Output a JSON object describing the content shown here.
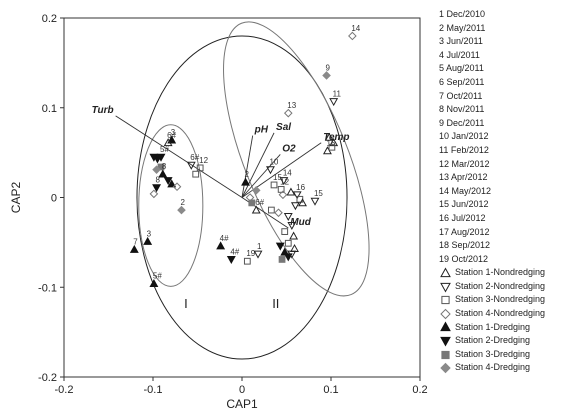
{
  "chart_data": {
    "type": "scatter",
    "xlabel": "CAP1",
    "ylabel": "CAP2",
    "xlim": [
      -0.2,
      0.2
    ],
    "ylim": [
      -0.2,
      0.2
    ],
    "xticks": [
      "-0.2",
      "-0.1",
      "0",
      "0.1",
      "0.2"
    ],
    "yticks": [
      "-0.2",
      "-0.1",
      "0",
      "0.1",
      "0.2"
    ],
    "legend_position": "right",
    "time_legend": [
      "1 Dec/2010",
      "2 May/2011",
      "3 Jun/2011",
      "4 Jul/2011",
      "5 Aug/2011",
      "6 Sep/2011",
      "7 Oct/2011",
      "8 Nov/2011",
      "9 Dec/2011",
      "10 Jan/2012",
      "11 Feb/2012",
      "12 Mar/2012",
      "13 Apr/2012",
      "14 May/2012",
      "15 Jun/2012",
      "16 Jul/2012",
      "17 Aug/2012",
      "18 Sep/2012",
      "19 Oct/2012"
    ],
    "station_legend": [
      {
        "label": "Station 1-Nondredging",
        "marker": "triangle-up-open",
        "color": "#222222"
      },
      {
        "label": "Station 2-Nondredging",
        "marker": "triangle-down-open",
        "color": "#222222"
      },
      {
        "label": "Station 3-Nondredging",
        "marker": "square-open",
        "color": "#555555"
      },
      {
        "label": "Station 4-Nondredging",
        "marker": "diamond-open",
        "color": "#777777"
      },
      {
        "label": "Station 1-Dredging",
        "marker": "triangle-up-filled",
        "color": "#111111"
      },
      {
        "label": "Station 2-Dredging",
        "marker": "triangle-down-filled",
        "color": "#111111"
      },
      {
        "label": "Station 3-Dredging",
        "marker": "square-filled",
        "color": "#777777"
      },
      {
        "label": "Station 4-Dredging",
        "marker": "diamond-filled",
        "color": "#8a8a8a"
      }
    ],
    "vectors": [
      {
        "label": "Turb",
        "x": -0.142,
        "y": 0.091
      },
      {
        "label": "pH",
        "x": 0.012,
        "y": 0.069
      },
      {
        "label": "Sal",
        "x": 0.036,
        "y": 0.072
      },
      {
        "label": "O2",
        "x": 0.043,
        "y": 0.048
      },
      {
        "label": "Temp",
        "x": 0.089,
        "y": 0.061
      },
      {
        "label": "Mud",
        "x": 0.052,
        "y": -0.034
      }
    ],
    "group_labels": [
      {
        "label": "I",
        "x": -0.063,
        "y": -0.123
      },
      {
        "label": "II",
        "x": 0.038,
        "y": -0.123
      }
    ],
    "ellipses": [
      {
        "cx": 0.0,
        "cy": 0.0,
        "rx": 0.118,
        "ry": 0.18,
        "angle": 0
      },
      {
        "cx": -0.08,
        "cy": -0.009,
        "rx": 0.036,
        "ry": 0.09,
        "angle": 0
      },
      {
        "cx": 0.061,
        "cy": 0.043,
        "rx": 0.058,
        "ry": 0.163,
        "angle": -22
      }
    ],
    "points": [
      {
        "label": "14",
        "x": 0.124,
        "y": 0.18,
        "marker": "diamond-open"
      },
      {
        "label": "9",
        "x": 0.095,
        "y": 0.136,
        "marker": "diamond-filled"
      },
      {
        "label": "11",
        "x": 0.103,
        "y": 0.107,
        "marker": "triangle-down-open"
      },
      {
        "label": "13",
        "x": 0.052,
        "y": 0.094,
        "marker": "diamond-open"
      },
      {
        "label": "",
        "x": 0.098,
        "y": 0.067,
        "marker": "triangle-up-open"
      },
      {
        "label": "",
        "x": 0.103,
        "y": 0.061,
        "marker": "triangle-up-open"
      },
      {
        "label": "16",
        "x": 0.096,
        "y": 0.052,
        "marker": "triangle-up-open"
      },
      {
        "label": "",
        "x": 0.101,
        "y": 0.056,
        "marker": "square-open"
      },
      {
        "label": "15",
        "x": 0.082,
        "y": -0.004,
        "marker": "triangle-down-open"
      },
      {
        "label": "10",
        "x": 0.032,
        "y": 0.031,
        "marker": "triangle-down-open"
      },
      {
        "label": "14",
        "x": 0.047,
        "y": 0.019,
        "marker": "triangle-down-open"
      },
      {
        "label": "15",
        "x": 0.036,
        "y": 0.014,
        "marker": "square-open"
      },
      {
        "label": "12",
        "x": 0.044,
        "y": 0.009,
        "marker": "square-open"
      },
      {
        "label": "",
        "x": 0.046,
        "y": 0.003,
        "marker": "diamond-open"
      },
      {
        "label": "",
        "x": 0.055,
        "y": 0.006,
        "marker": "triangle-up-open"
      },
      {
        "label": "16",
        "x": 0.062,
        "y": 0.003,
        "marker": "triangle-down-open"
      },
      {
        "label": "",
        "x": 0.065,
        "y": -0.002,
        "marker": "square-open"
      },
      {
        "label": "",
        "x": 0.06,
        "y": -0.009,
        "marker": "triangle-down-open"
      },
      {
        "label": "",
        "x": 0.068,
        "y": -0.006,
        "marker": "triangle-up-open"
      },
      {
        "label": "6#",
        "x": 0.016,
        "y": -0.014,
        "marker": "triangle-up-open"
      },
      {
        "label": "",
        "x": 0.033,
        "y": -0.014,
        "marker": "square-open"
      },
      {
        "label": "",
        "x": 0.041,
        "y": -0.017,
        "marker": "diamond-open"
      },
      {
        "label": "",
        "x": 0.052,
        "y": -0.021,
        "marker": "triangle-down-open"
      },
      {
        "label": "",
        "x": 0.056,
        "y": -0.031,
        "marker": "triangle-down-open"
      },
      {
        "label": "",
        "x": 0.048,
        "y": -0.038,
        "marker": "square-open"
      },
      {
        "label": "",
        "x": 0.058,
        "y": -0.043,
        "marker": "triangle-up-open"
      },
      {
        "label": "",
        "x": 0.052,
        "y": -0.051,
        "marker": "square-open"
      },
      {
        "label": "",
        "x": 0.043,
        "y": -0.054,
        "marker": "triangle-down-filled"
      },
      {
        "label": "",
        "x": 0.048,
        "y": -0.061,
        "marker": "triangle-up-filled"
      },
      {
        "label": "",
        "x": 0.052,
        "y": -0.066,
        "marker": "triangle-down-filled"
      },
      {
        "label": "",
        "x": 0.045,
        "y": -0.069,
        "marker": "square-filled"
      },
      {
        "label": "",
        "x": 0.056,
        "y": -0.063,
        "marker": "triangle-down-open"
      },
      {
        "label": "",
        "x": 0.059,
        "y": -0.057,
        "marker": "triangle-up-open"
      },
      {
        "label": "19",
        "x": 0.006,
        "y": -0.071,
        "marker": "square-open"
      },
      {
        "label": "1",
        "x": 0.018,
        "y": -0.063,
        "marker": "triangle-down-open"
      },
      {
        "label": "2",
        "x": 0.004,
        "y": 0.017,
        "marker": "triangle-up-filled"
      },
      {
        "label": "",
        "x": 0.016,
        "y": 0.008,
        "marker": "diamond-filled"
      },
      {
        "label": "",
        "x": 0.009,
        "y": 0.0,
        "marker": "diamond-open"
      },
      {
        "label": "",
        "x": 0.011,
        "y": -0.006,
        "marker": "square-filled"
      },
      {
        "label": "4#",
        "x": -0.024,
        "y": -0.054,
        "marker": "triangle-up-filled"
      },
      {
        "label": "4#",
        "x": -0.012,
        "y": -0.069,
        "marker": "triangle-down-filled"
      },
      {
        "label": "3",
        "x": -0.079,
        "y": 0.064,
        "marker": "triangle-up-filled"
      },
      {
        "label": "6#",
        "x": -0.083,
        "y": 0.061,
        "marker": "triangle-up-open"
      },
      {
        "label": "5#",
        "x": -0.091,
        "y": 0.045,
        "marker": "triangle-down-filled"
      },
      {
        "label": "",
        "x": -0.095,
        "y": 0.043,
        "marker": "triangle-down-filled"
      },
      {
        "label": "",
        "x": -0.099,
        "y": 0.045,
        "marker": "triangle-down-filled"
      },
      {
        "label": "",
        "x": -0.091,
        "y": 0.034,
        "marker": "square-filled"
      },
      {
        "label": "",
        "x": -0.096,
        "y": 0.031,
        "marker": "diamond-filled"
      },
      {
        "label": "8",
        "x": -0.089,
        "y": 0.026,
        "marker": "triangle-up-filled"
      },
      {
        "label": "6#",
        "x": -0.057,
        "y": 0.036,
        "marker": "triangle-down-open"
      },
      {
        "label": "12",
        "x": -0.047,
        "y": 0.033,
        "marker": "square-open"
      },
      {
        "label": "",
        "x": -0.052,
        "y": 0.026,
        "marker": "square-open"
      },
      {
        "label": "",
        "x": -0.079,
        "y": 0.015,
        "marker": "triangle-up-filled"
      },
      {
        "label": "",
        "x": -0.083,
        "y": 0.019,
        "marker": "triangle-down-filled"
      },
      {
        "label": "",
        "x": -0.073,
        "y": 0.012,
        "marker": "diamond-open"
      },
      {
        "label": "8",
        "x": -0.096,
        "y": 0.011,
        "marker": "triangle-down-filled"
      },
      {
        "label": "",
        "x": -0.099,
        "y": 0.004,
        "marker": "diamond-open"
      },
      {
        "label": "2",
        "x": -0.068,
        "y": -0.014,
        "marker": "diamond-filled"
      },
      {
        "label": "7",
        "x": -0.121,
        "y": -0.058,
        "marker": "triangle-up-filled"
      },
      {
        "label": "3",
        "x": -0.106,
        "y": -0.049,
        "marker": "triangle-up-filled"
      },
      {
        "label": "5#",
        "x": -0.099,
        "y": -0.096,
        "marker": "triangle-up-filled"
      }
    ]
  }
}
